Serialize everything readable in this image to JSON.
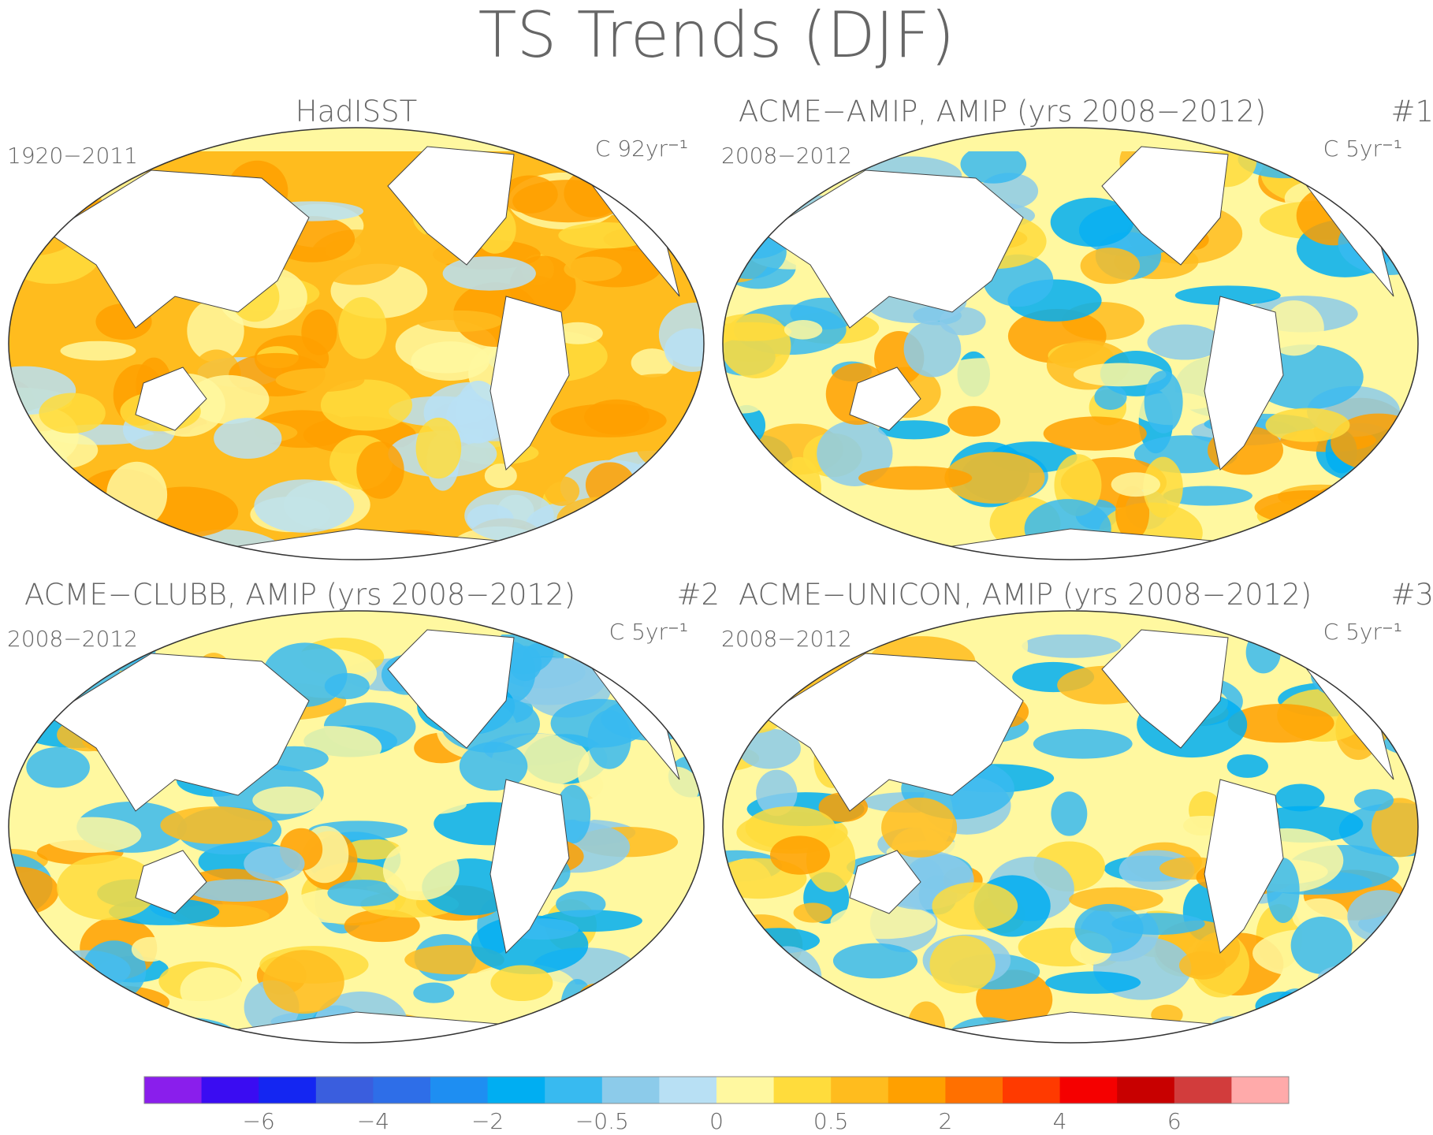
{
  "title": "TS Trends (DJF)",
  "panels": [
    {
      "title": "HadISST",
      "years": "1920−2011",
      "units": "C 92yr⁻¹"
    },
    {
      "title": "ACME−AMIP, AMIP (yrs 2008−2012)",
      "years": "2008−2012",
      "units": "C 5yr⁻¹",
      "number": "#1"
    },
    {
      "title": "ACME−CLUBB, AMIP (yrs 2008−2012)",
      "years": "2008−2012",
      "units": "C 5yr⁻¹",
      "number": "#2"
    },
    {
      "title": "ACME−UNICON, AMIP (yrs 2008−2012)",
      "years": "2008−2012",
      "units": "C 5yr⁻¹",
      "number": "#3"
    }
  ],
  "colorbar": {
    "colors": [
      "#8a1eec",
      "#3a0cf2",
      "#1426f2",
      "#3a5ede",
      "#2e6ee8",
      "#1e8ef2",
      "#00aef2",
      "#38baf0",
      "#8ccbea",
      "#b8e0f4",
      "#fff8a0",
      "#ffdc3c",
      "#ffbc1e",
      "#ffa000",
      "#ff7000",
      "#ff3a00",
      "#f50000",
      "#c80000",
      "#d23c3c",
      "#ffaaaa"
    ],
    "ticks": [
      {
        "value": -6,
        "label": "−6"
      },
      {
        "value": -4,
        "label": "−4"
      },
      {
        "value": -2,
        "label": "−2"
      },
      {
        "value": -0.5,
        "label": "−0.5"
      },
      0,
      0.5,
      2,
      4,
      6
    ]
  }
}
